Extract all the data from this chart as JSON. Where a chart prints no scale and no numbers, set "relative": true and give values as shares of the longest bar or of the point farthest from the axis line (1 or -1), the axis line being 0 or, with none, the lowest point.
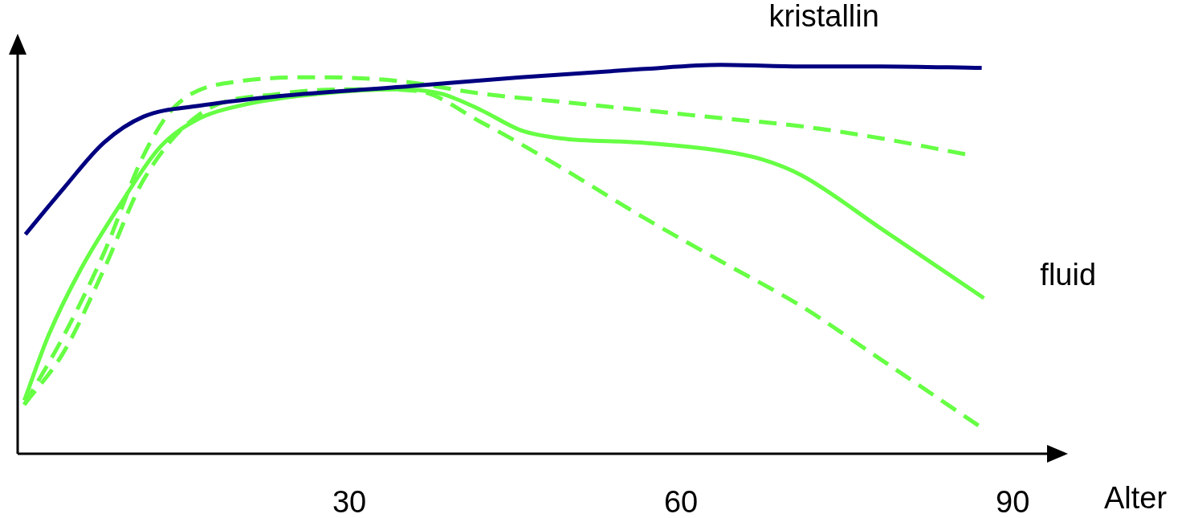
{
  "chart_data": {
    "type": "line",
    "relative": true,
    "xlabel": "Alter",
    "xlim": [
      0,
      95
    ],
    "xticks": [
      30,
      60,
      90
    ],
    "tick_labels": "x",
    "grid": false,
    "legend": false,
    "marker": "none",
    "series": [
      {
        "name": "kristallin",
        "color": "#000080",
        "line_style": "solid",
        "x": [
          0.7,
          4.2,
          7.8,
          11.4,
          16.5,
          23.8,
          34.6,
          45.5,
          56.4,
          63.6,
          70.9,
          78.1,
          87.2
        ],
        "values": [
          0.564,
          0.684,
          0.8,
          0.867,
          0.895,
          0.92,
          0.943,
          0.968,
          0.989,
          1,
          0.996,
          0.996,
          0.992
        ]
      },
      {
        "name": "fluid",
        "color": "#66ff44",
        "line_style": "solid",
        "x": [
          0.6,
          2.8,
          5.7,
          9.3,
          12.9,
          16.5,
          20.1,
          27.4,
          34.6,
          38.3,
          41.9,
          45.5,
          49.1,
          56.4,
          63.6,
          67.2,
          70.9,
          78.1,
          87.4
        ],
        "values": [
          0.137,
          0.305,
          0.474,
          0.642,
          0.789,
          0.863,
          0.895,
          0.926,
          0.937,
          0.926,
          0.884,
          0.832,
          0.811,
          0.8,
          0.779,
          0.758,
          0.716,
          0.579,
          0.4
        ]
      },
      {
        "color": "#66ff44",
        "line_style": "dashed",
        "x": [
          0.6,
          4.2,
          7.8,
          11.4,
          14.3,
          20.1,
          27.4,
          34.6,
          41.9,
          49.1,
          56.4,
          63.6,
          70.9,
          78.1,
          86.1
        ],
        "values": [
          0.126,
          0.305,
          0.516,
          0.768,
          0.895,
          0.958,
          0.968,
          0.958,
          0.926,
          0.905,
          0.884,
          0.863,
          0.842,
          0.811,
          0.768
        ]
      },
      {
        "color": "#66ff44",
        "line_style": "dashed",
        "x": [
          0.6,
          4.2,
          7.8,
          11.4,
          16.5,
          23.8,
          31.0,
          36.1,
          41.9,
          49.1,
          56.4,
          63.6,
          70.9,
          78.1,
          87.4
        ],
        "values": [
          0.126,
          0.263,
          0.474,
          0.705,
          0.874,
          0.926,
          0.937,
          0.933,
          0.853,
          0.737,
          0.611,
          0.495,
          0.379,
          0.242,
          0.063
        ]
      }
    ]
  }
}
